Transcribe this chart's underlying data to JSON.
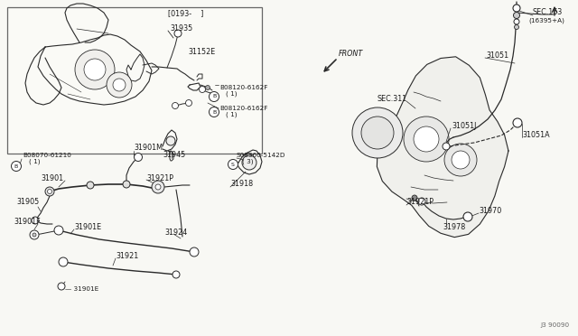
{
  "bg_color": "#f8f8f4",
  "line_color": "#2a2a2a",
  "text_color": "#1a1a1a",
  "footnote": "J3 90090",
  "inset_label": "[0193-    ]",
  "front_label": "FRONT"
}
